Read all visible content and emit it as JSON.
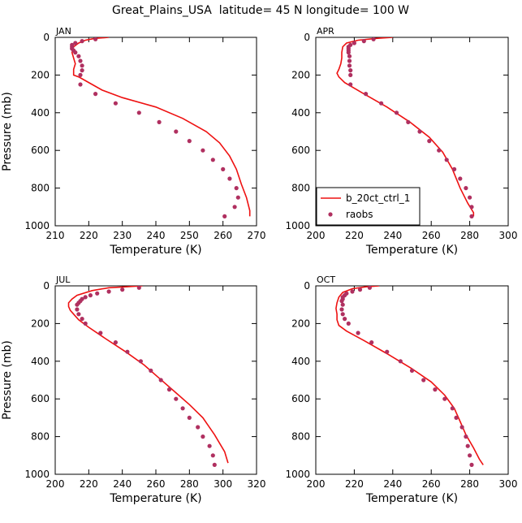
{
  "figure": {
    "title": "Great_Plains_USA  latitude= 45 N longitude= 100 W"
  },
  "colors": {
    "model_line": "#ee1111",
    "obs_marker": "#b03060",
    "axis": "#000000"
  },
  "legend": {
    "panel": "APR",
    "placement": "bottom-left",
    "entries": [
      {
        "label": "b_20ct_ctrl_1",
        "kind": "line"
      },
      {
        "label": "raobs",
        "kind": "marker"
      }
    ]
  },
  "chart_data": [
    {
      "type": "line",
      "panel": "JAN",
      "xlabel": "Temperature (K)",
      "ylabel": "Pressure (mb)",
      "xlim": [
        210,
        270
      ],
      "ylim": [
        1000,
        0
      ],
      "xticks": [
        210,
        220,
        230,
        240,
        250,
        260,
        270
      ],
      "yticks": [
        0,
        200,
        400,
        600,
        800,
        1000
      ],
      "series": [
        {
          "name": "b_20ct_ctrl_1",
          "style": "line",
          "points": [
            [
              226,
              0
            ],
            [
              222,
              5
            ],
            [
              219,
              15
            ],
            [
              217,
              30
            ],
            [
              215.5,
              50
            ],
            [
              215,
              80
            ],
            [
              215.5,
              110
            ],
            [
              216,
              140
            ],
            [
              215.5,
              170
            ],
            [
              215.5,
              200
            ],
            [
              217,
              210
            ],
            [
              218,
              220
            ],
            [
              221,
              250
            ],
            [
              224,
              280
            ],
            [
              230,
              320
            ],
            [
              240,
              370
            ],
            [
              248,
              430
            ],
            [
              255,
              500
            ],
            [
              259,
              560
            ],
            [
              262,
              630
            ],
            [
              264,
              700
            ],
            [
              265.5,
              780
            ],
            [
              267,
              850
            ],
            [
              268,
              920
            ],
            [
              268,
              950
            ]
          ]
        },
        {
          "name": "raobs",
          "style": "marker",
          "points": [
            [
              222,
              10
            ],
            [
              218,
              20
            ],
            [
              216,
              30
            ],
            [
              215,
              40
            ],
            [
              215,
              50
            ],
            [
              215,
              60
            ],
            [
              215.5,
              70
            ],
            [
              216,
              80
            ],
            [
              217,
              100
            ],
            [
              217.5,
              125
            ],
            [
              218,
              150
            ],
            [
              218,
              175
            ],
            [
              217.5,
              200
            ],
            [
              217.5,
              250
            ],
            [
              222,
              300
            ],
            [
              228,
              350
            ],
            [
              235,
              400
            ],
            [
              241,
              450
            ],
            [
              246,
              500
            ],
            [
              250,
              550
            ],
            [
              254,
              600
            ],
            [
              257,
              650
            ],
            [
              260,
              700
            ],
            [
              262,
              750
            ],
            [
              264,
              800
            ],
            [
              264.5,
              850
            ],
            [
              263.5,
              900
            ],
            [
              260.5,
              950
            ]
          ]
        }
      ]
    },
    {
      "type": "line",
      "panel": "APR",
      "xlabel": "Temperature (K)",
      "ylabel": "",
      "xlim": [
        200,
        300
      ],
      "ylim": [
        1000,
        0
      ],
      "xticks": [
        200,
        220,
        240,
        260,
        280,
        300
      ],
      "yticks": [
        0,
        200,
        400,
        600,
        800,
        1000
      ],
      "series": [
        {
          "name": "b_20ct_ctrl_1",
          "style": "line",
          "points": [
            [
              240,
              0
            ],
            [
              232,
              5
            ],
            [
              222,
              15
            ],
            [
              216,
              30
            ],
            [
              214,
              50
            ],
            [
              213.5,
              80
            ],
            [
              213.5,
              110
            ],
            [
              213,
              140
            ],
            [
              212,
              170
            ],
            [
              211,
              190
            ],
            [
              212,
              210
            ],
            [
              215,
              240
            ],
            [
              225,
              300
            ],
            [
              237,
              370
            ],
            [
              249,
              450
            ],
            [
              259,
              530
            ],
            [
              266,
              610
            ],
            [
              271,
              700
            ],
            [
              275,
              800
            ],
            [
              279,
              880
            ],
            [
              282,
              930
            ],
            [
              282,
              950
            ]
          ]
        },
        {
          "name": "raobs",
          "style": "marker",
          "points": [
            [
              230,
              10
            ],
            [
              225,
              20
            ],
            [
              220,
              30
            ],
            [
              218,
              40
            ],
            [
              217,
              50
            ],
            [
              217,
              60
            ],
            [
              217,
              70
            ],
            [
              217,
              80
            ],
            [
              217.5,
              100
            ],
            [
              217.5,
              125
            ],
            [
              217.5,
              150
            ],
            [
              218,
              175
            ],
            [
              218,
              200
            ],
            [
              218,
              250
            ],
            [
              226,
              300
            ],
            [
              234,
              350
            ],
            [
              242,
              400
            ],
            [
              248,
              450
            ],
            [
              254,
              500
            ],
            [
              259,
              550
            ],
            [
              264,
              600
            ],
            [
              268,
              650
            ],
            [
              272,
              700
            ],
            [
              275,
              750
            ],
            [
              278,
              800
            ],
            [
              280,
              850
            ],
            [
              281,
              900
            ],
            [
              281,
              950
            ]
          ]
        }
      ]
    },
    {
      "type": "line",
      "panel": "JUL",
      "xlabel": "Temperature (K)",
      "ylabel": "Pressure (mb)",
      "xlim": [
        200,
        320
      ],
      "ylim": [
        1000,
        0
      ],
      "xticks": [
        200,
        220,
        240,
        260,
        280,
        300,
        320
      ],
      "yticks": [
        0,
        200,
        400,
        600,
        800,
        1000
      ],
      "series": [
        {
          "name": "b_20ct_ctrl_1",
          "style": "line",
          "points": [
            [
              252,
              0
            ],
            [
              242,
              5
            ],
            [
              232,
              10
            ],
            [
              222,
              25
            ],
            [
              213,
              50
            ],
            [
              210,
              70
            ],
            [
              208,
              90
            ],
            [
              208,
              110
            ],
            [
              209,
              130
            ],
            [
              211,
              150
            ],
            [
              214,
              180
            ],
            [
              220,
              220
            ],
            [
              230,
              280
            ],
            [
              242,
              350
            ],
            [
              253,
              420
            ],
            [
              262,
              490
            ],
            [
              271,
              560
            ],
            [
              280,
              630
            ],
            [
              288,
              700
            ],
            [
              295,
              790
            ],
            [
              301,
              880
            ],
            [
              303,
              940
            ]
          ]
        },
        {
          "name": "raobs",
          "style": "marker",
          "points": [
            [
              250,
              10
            ],
            [
              240,
              20
            ],
            [
              232,
              30
            ],
            [
              225,
              40
            ],
            [
              221,
              50
            ],
            [
              218,
              60
            ],
            [
              216,
              70
            ],
            [
              215,
              80
            ],
            [
              214,
              90
            ],
            [
              213,
              100
            ],
            [
              213,
              125
            ],
            [
              214,
              150
            ],
            [
              216,
              175
            ],
            [
              218,
              200
            ],
            [
              227,
              250
            ],
            [
              236,
              300
            ],
            [
              243,
              350
            ],
            [
              251,
              400
            ],
            [
              257,
              450
            ],
            [
              263,
              500
            ],
            [
              268,
              550
            ],
            [
              272,
              600
            ],
            [
              276,
              650
            ],
            [
              280,
              700
            ],
            [
              285,
              750
            ],
            [
              288,
              800
            ],
            [
              292,
              850
            ],
            [
              294,
              900
            ],
            [
              295,
              950
            ]
          ]
        }
      ]
    },
    {
      "type": "line",
      "panel": "OCT",
      "xlabel": "Temperature (K)",
      "ylabel": "",
      "xlim": [
        200,
        300
      ],
      "ylim": [
        1000,
        0
      ],
      "xticks": [
        200,
        220,
        240,
        260,
        280,
        300
      ],
      "yticks": [
        0,
        200,
        400,
        600,
        800,
        1000
      ],
      "series": [
        {
          "name": "b_20ct_ctrl_1",
          "style": "line",
          "points": [
            [
              233,
              0
            ],
            [
              226,
              5
            ],
            [
              219,
              15
            ],
            [
              214,
              35
            ],
            [
              212,
              60
            ],
            [
              211,
              90
            ],
            [
              210.5,
              120
            ],
            [
              211,
              150
            ],
            [
              211,
              180
            ],
            [
              212,
              210
            ],
            [
              216,
              240
            ],
            [
              225,
              290
            ],
            [
              237,
              360
            ],
            [
              250,
              440
            ],
            [
              260,
              510
            ],
            [
              267,
              580
            ],
            [
              272,
              650
            ],
            [
              275,
              720
            ],
            [
              278,
              790
            ],
            [
              282,
              860
            ],
            [
              285,
              920
            ],
            [
              287,
              950
            ]
          ]
        },
        {
          "name": "raobs",
          "style": "marker",
          "points": [
            [
              228,
              10
            ],
            [
              223,
              20
            ],
            [
              219,
              30
            ],
            [
              216,
              40
            ],
            [
              215,
              50
            ],
            [
              214,
              60
            ],
            [
              214,
              70
            ],
            [
              213.5,
              80
            ],
            [
              214,
              100
            ],
            [
              213.5,
              125
            ],
            [
              214,
              150
            ],
            [
              215,
              175
            ],
            [
              217,
              200
            ],
            [
              222,
              250
            ],
            [
              229,
              300
            ],
            [
              237,
              350
            ],
            [
              244,
              400
            ],
            [
              250,
              450
            ],
            [
              256,
              500
            ],
            [
              262,
              550
            ],
            [
              267,
              600
            ],
            [
              271,
              650
            ],
            [
              273,
              700
            ],
            [
              276,
              750
            ],
            [
              278,
              800
            ],
            [
              279,
              850
            ],
            [
              280,
              900
            ],
            [
              281,
              950
            ]
          ]
        }
      ]
    }
  ]
}
